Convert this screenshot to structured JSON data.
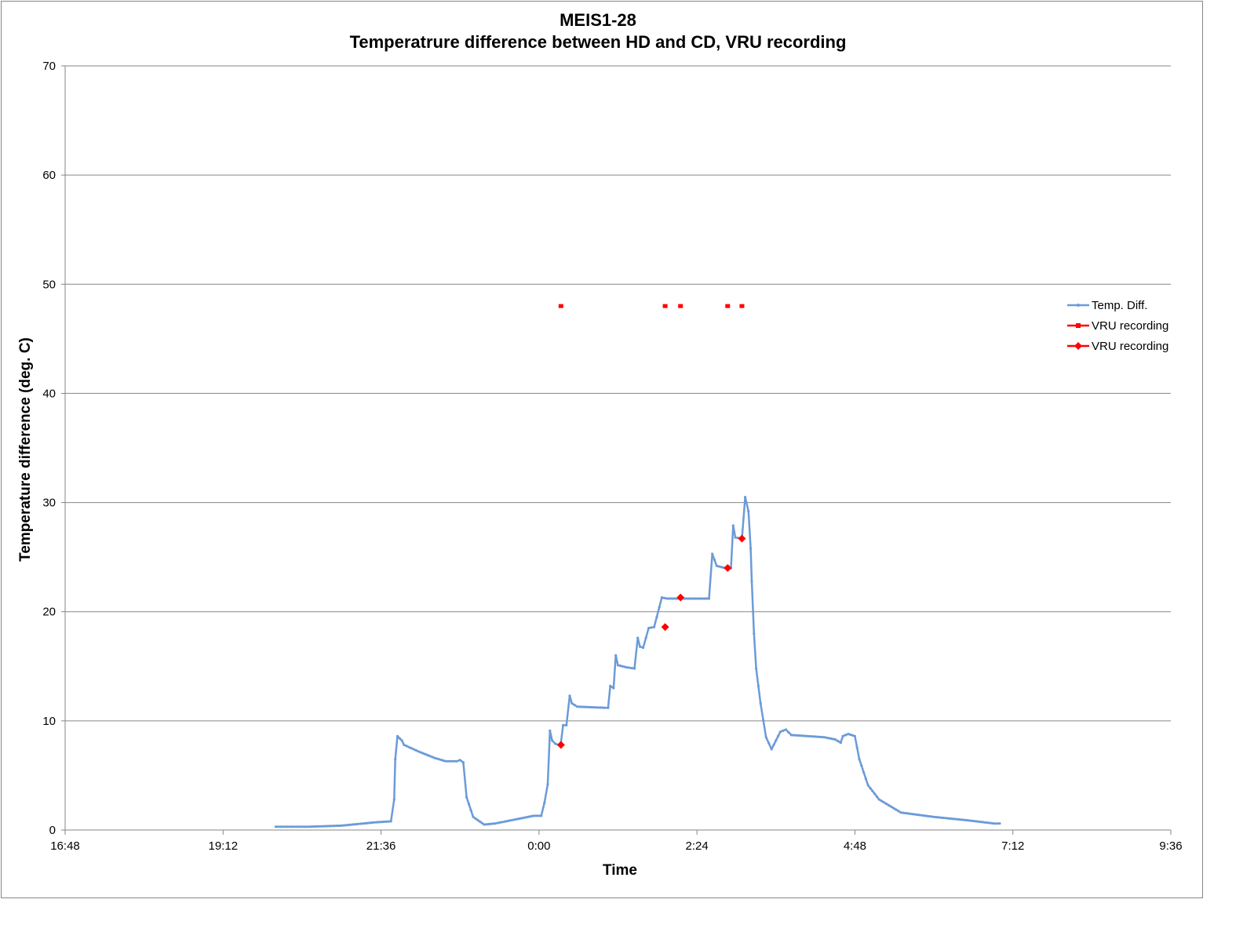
{
  "chart_data": {
    "type": "line",
    "title": "MEIS1-28",
    "subtitle": "Temperatrure difference between HD and CD, VRU recording",
    "xlabel": "Time",
    "ylabel": "Temperature difference (deg. C)",
    "xlim": [
      "16:48",
      "9:36"
    ],
    "ylim": [
      0,
      70
    ],
    "x_ticks": [
      "16:48",
      "19:12",
      "21:36",
      "0:00",
      "2:24",
      "4:48",
      "7:12",
      "9:36"
    ],
    "y_ticks": [
      0,
      10,
      20,
      30,
      40,
      50,
      60,
      70
    ],
    "grid": "horizontal",
    "legend_position": "right",
    "colors": {
      "temp": "#6b9bd8",
      "vru": "#ff0000",
      "grid": "#868686"
    },
    "series": [
      {
        "name": "Temp. Diff.",
        "points": [
          [
            "20:00",
            0.3
          ],
          [
            "20:30",
            0.3
          ],
          [
            "21:00",
            0.4
          ],
          [
            "21:30",
            0.7
          ],
          [
            "21:45",
            0.8
          ],
          [
            "21:48",
            2.8
          ],
          [
            "21:49",
            6.5
          ],
          [
            "21:51",
            8.6
          ],
          [
            "21:55",
            8.2
          ],
          [
            "21:57",
            7.8
          ],
          [
            "22:10",
            7.2
          ],
          [
            "22:25",
            6.6
          ],
          [
            "22:35",
            6.3
          ],
          [
            "22:45",
            6.3
          ],
          [
            "22:48",
            6.4
          ],
          [
            "22:51",
            6.2
          ],
          [
            "22:54",
            3.0
          ],
          [
            "23:00",
            1.2
          ],
          [
            "23:10",
            0.5
          ],
          [
            "23:20",
            0.6
          ],
          [
            "23:40",
            1.0
          ],
          [
            "23:55",
            1.3
          ],
          [
            "0:02",
            1.3
          ],
          [
            "0:05",
            2.5
          ],
          [
            "0:08",
            4.2
          ],
          [
            "0:10",
            9.1
          ],
          [
            "0:12",
            8.2
          ],
          [
            "0:15",
            7.9
          ],
          [
            "0:18",
            7.8
          ],
          [
            "0:20",
            8.0
          ],
          [
            "0:22",
            9.6
          ],
          [
            "0:25",
            9.6
          ],
          [
            "0:28",
            12.3
          ],
          [
            "0:30",
            11.6
          ],
          [
            "0:35",
            11.3
          ],
          [
            "1:00",
            11.2
          ],
          [
            "1:03",
            11.2
          ],
          [
            "1:05",
            13.2
          ],
          [
            "1:08",
            13.0
          ],
          [
            "1:10",
            16.0
          ],
          [
            "1:12",
            15.1
          ],
          [
            "1:20",
            14.9
          ],
          [
            "1:27",
            14.8
          ],
          [
            "1:30",
            17.6
          ],
          [
            "1:32",
            16.8
          ],
          [
            "1:35",
            16.7
          ],
          [
            "1:40",
            18.5
          ],
          [
            "1:45",
            18.6
          ],
          [
            "1:52",
            21.3
          ],
          [
            "1:57",
            21.2
          ],
          [
            "2:10",
            21.2
          ],
          [
            "2:35",
            21.2
          ],
          [
            "2:38",
            25.3
          ],
          [
            "2:42",
            24.2
          ],
          [
            "2:50",
            24.0
          ],
          [
            "2:55",
            24.0
          ],
          [
            "2:57",
            27.9
          ],
          [
            "2:59",
            26.8
          ],
          [
            "3:05",
            26.7
          ],
          [
            "3:08",
            30.5
          ],
          [
            "3:11",
            29.2
          ],
          [
            "3:13",
            25.8
          ],
          [
            "3:14",
            22.8
          ],
          [
            "3:16",
            18.0
          ],
          [
            "3:18",
            14.8
          ],
          [
            "3:22",
            11.6
          ],
          [
            "3:27",
            8.5
          ],
          [
            "3:32",
            7.4
          ],
          [
            "3:40",
            9.0
          ],
          [
            "3:45",
            9.2
          ],
          [
            "3:50",
            8.7
          ],
          [
            "4:20",
            8.5
          ],
          [
            "4:30",
            8.3
          ],
          [
            "4:35",
            8.0
          ],
          [
            "4:37",
            8.6
          ],
          [
            "4:42",
            8.8
          ],
          [
            "4:48",
            8.6
          ],
          [
            "4:52",
            6.5
          ],
          [
            "5:00",
            4.1
          ],
          [
            "5:10",
            2.8
          ],
          [
            "5:30",
            1.6
          ],
          [
            "6:00",
            1.2
          ],
          [
            "6:30",
            0.9
          ],
          [
            "6:55",
            0.6
          ],
          [
            "7:00",
            0.6
          ]
        ]
      },
      {
        "name": "VRU recording",
        "points": [
          [
            "0:20",
            48.0
          ],
          [
            "1:55",
            48.0
          ],
          [
            "2:09",
            48.0
          ],
          [
            "2:52",
            48.0
          ],
          [
            "3:05",
            48.0
          ]
        ]
      },
      {
        "name": "VRU recording",
        "points": [
          [
            "0:20",
            7.8
          ],
          [
            "1:55",
            18.6
          ],
          [
            "2:09",
            21.3
          ],
          [
            "2:52",
            24.0
          ],
          [
            "3:05",
            26.7
          ]
        ]
      }
    ]
  }
}
